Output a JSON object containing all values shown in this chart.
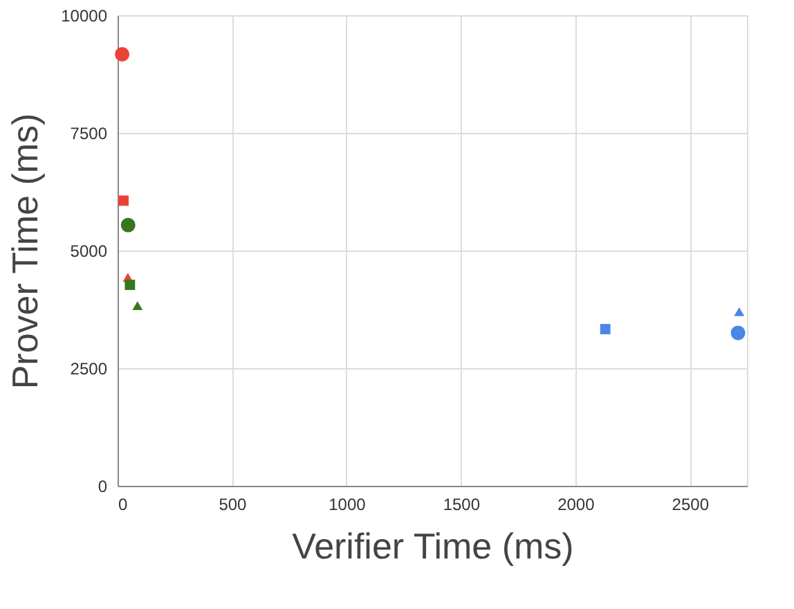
{
  "chart_data": {
    "type": "scatter",
    "xlabel": "Verifier Time (ms)",
    "ylabel": "Prover Time (ms)",
    "xlim": [
      0,
      2750
    ],
    "xticks": [
      0,
      500,
      1000,
      1500,
      2000,
      2500
    ],
    "ylim": [
      0,
      10000
    ],
    "yticks": [
      0,
      2500,
      5000,
      7500,
      10000
    ],
    "grid": true,
    "series": [
      {
        "color": "#ea4335",
        "marker": "circle",
        "x": [
          20
        ],
        "values": [
          9170
        ]
      },
      {
        "color": "#ea4335",
        "marker": "square",
        "x": [
          26
        ],
        "values": [
          6060
        ]
      },
      {
        "color": "#ea4335",
        "marker": "triangle",
        "x": [
          45
        ],
        "values": [
          4430
        ]
      },
      {
        "color": "#38761d",
        "marker": "circle",
        "x": [
          46
        ],
        "values": [
          5540
        ]
      },
      {
        "color": "#38761d",
        "marker": "square",
        "x": [
          54
        ],
        "values": [
          4270
        ]
      },
      {
        "color": "#38761d",
        "marker": "triangle",
        "x": [
          87
        ],
        "values": [
          3830
        ]
      },
      {
        "color": "#4a86e8",
        "marker": "square",
        "x": [
          2131
        ],
        "values": [
          3330
        ]
      },
      {
        "color": "#4a86e8",
        "marker": "circle",
        "x": [
          2711
        ],
        "values": [
          3250
        ]
      },
      {
        "color": "#4a86e8",
        "marker": "triangle",
        "x": [
          2716
        ],
        "values": [
          3700
        ]
      }
    ]
  }
}
